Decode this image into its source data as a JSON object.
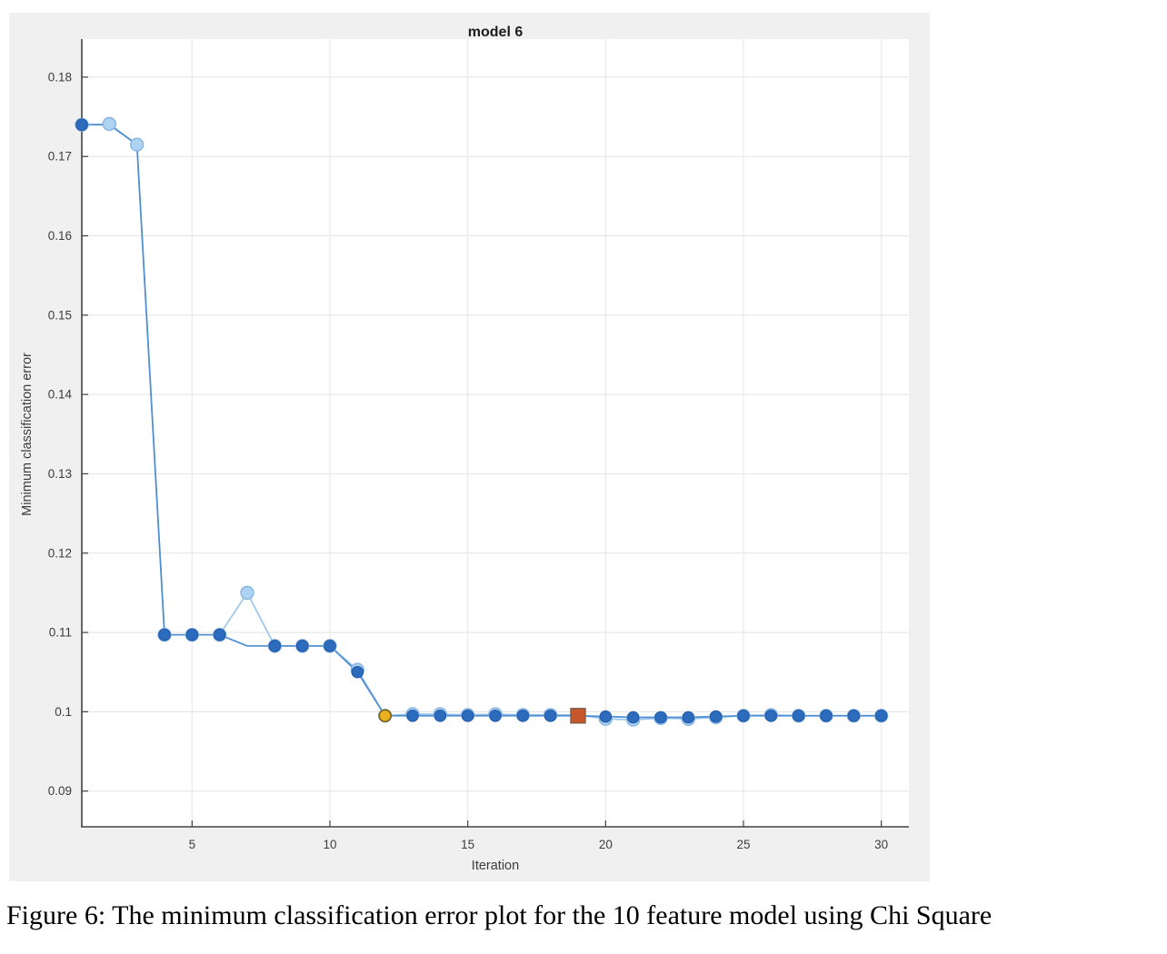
{
  "caption": "Figure 6: The minimum classification error plot for the 10 feature model using Chi Square",
  "chart_data": {
    "type": "line",
    "title": "model 6",
    "xlabel": "Iteration",
    "ylabel": "Minimum classification error",
    "xlim": [
      1,
      31
    ],
    "ylim": [
      0.0855,
      0.1848
    ],
    "x_ticks": [
      5,
      10,
      15,
      20,
      25,
      30
    ],
    "x_tick_labels": [
      "5",
      "10",
      "15",
      "20",
      "25",
      "30"
    ],
    "y_ticks": [
      0.09,
      0.1,
      0.11,
      0.12,
      0.13,
      0.14,
      0.15,
      0.16,
      0.17,
      0.18
    ],
    "y_tick_labels": [
      "0.09",
      "0.1",
      "0.11",
      "0.12",
      "0.13",
      "0.14",
      "0.15",
      "0.16",
      "0.17",
      "0.18"
    ],
    "grid": true,
    "legend": "none",
    "x": [
      1,
      2,
      3,
      4,
      5,
      6,
      7,
      8,
      9,
      10,
      11,
      12,
      13,
      14,
      15,
      16,
      17,
      18,
      19,
      20,
      21,
      22,
      23,
      24,
      25,
      26,
      27,
      28,
      29,
      30
    ],
    "series": [
      {
        "name": "estimated-min-classification-error",
        "line_color": "#9cc6ee",
        "marker_fill": "#aed3f2",
        "marker_edge": "#7fb2e2",
        "values": [
          0.174,
          0.1741,
          0.1715,
          0.1097,
          0.1097,
          0.1097,
          0.115,
          0.1083,
          0.1083,
          0.1083,
          0.1053,
          0.0995,
          0.0997,
          0.0997,
          0.0996,
          0.0997,
          0.0996,
          0.0996,
          0.0996,
          0.0991,
          0.099,
          0.0992,
          0.0991,
          0.0993,
          0.0995,
          0.0996,
          0.0995,
          0.0995,
          0.0995,
          0.0995
        ]
      },
      {
        "name": "observed-min-classification-error",
        "line_color": "#4e8ed2",
        "marker_fill": "#2d6cbc",
        "marker_edge": "#2258a8",
        "values": [
          0.174,
          0.174,
          0.1715,
          0.1097,
          0.1097,
          0.1097,
          0.1083,
          0.1083,
          0.1083,
          0.1083,
          0.105,
          0.0995,
          0.0995,
          0.0995,
          0.0995,
          0.0995,
          0.0995,
          0.0995,
          0.0995,
          0.0994,
          0.0993,
          0.0993,
          0.0993,
          0.0994,
          0.0995,
          0.0995,
          0.0995,
          0.0995,
          0.0995,
          0.0995
        ]
      }
    ],
    "estimated_marker_on_top_iterations": [
      2,
      3,
      7
    ],
    "special_markers": [
      {
        "name": "min-error-hyperparameters-point",
        "iteration": 12,
        "value": 0.0995,
        "shape": "circle",
        "fill": "#ECB01F",
        "edge": "#77641f"
      },
      {
        "name": "best-point-hyperparameters-marker",
        "iteration": 19,
        "value": 0.0995,
        "shape": "square",
        "fill": "#C8562B",
        "edge": "#7f5d49"
      }
    ],
    "style": {
      "figure_bg": "#f0f0f0",
      "plot_bg": "#ffffff",
      "grid_color": "#e8e8e8",
      "axis_color": "#424242",
      "tick_label_color": "#3c3c3c",
      "title_color": "#1d1d1d"
    }
  }
}
